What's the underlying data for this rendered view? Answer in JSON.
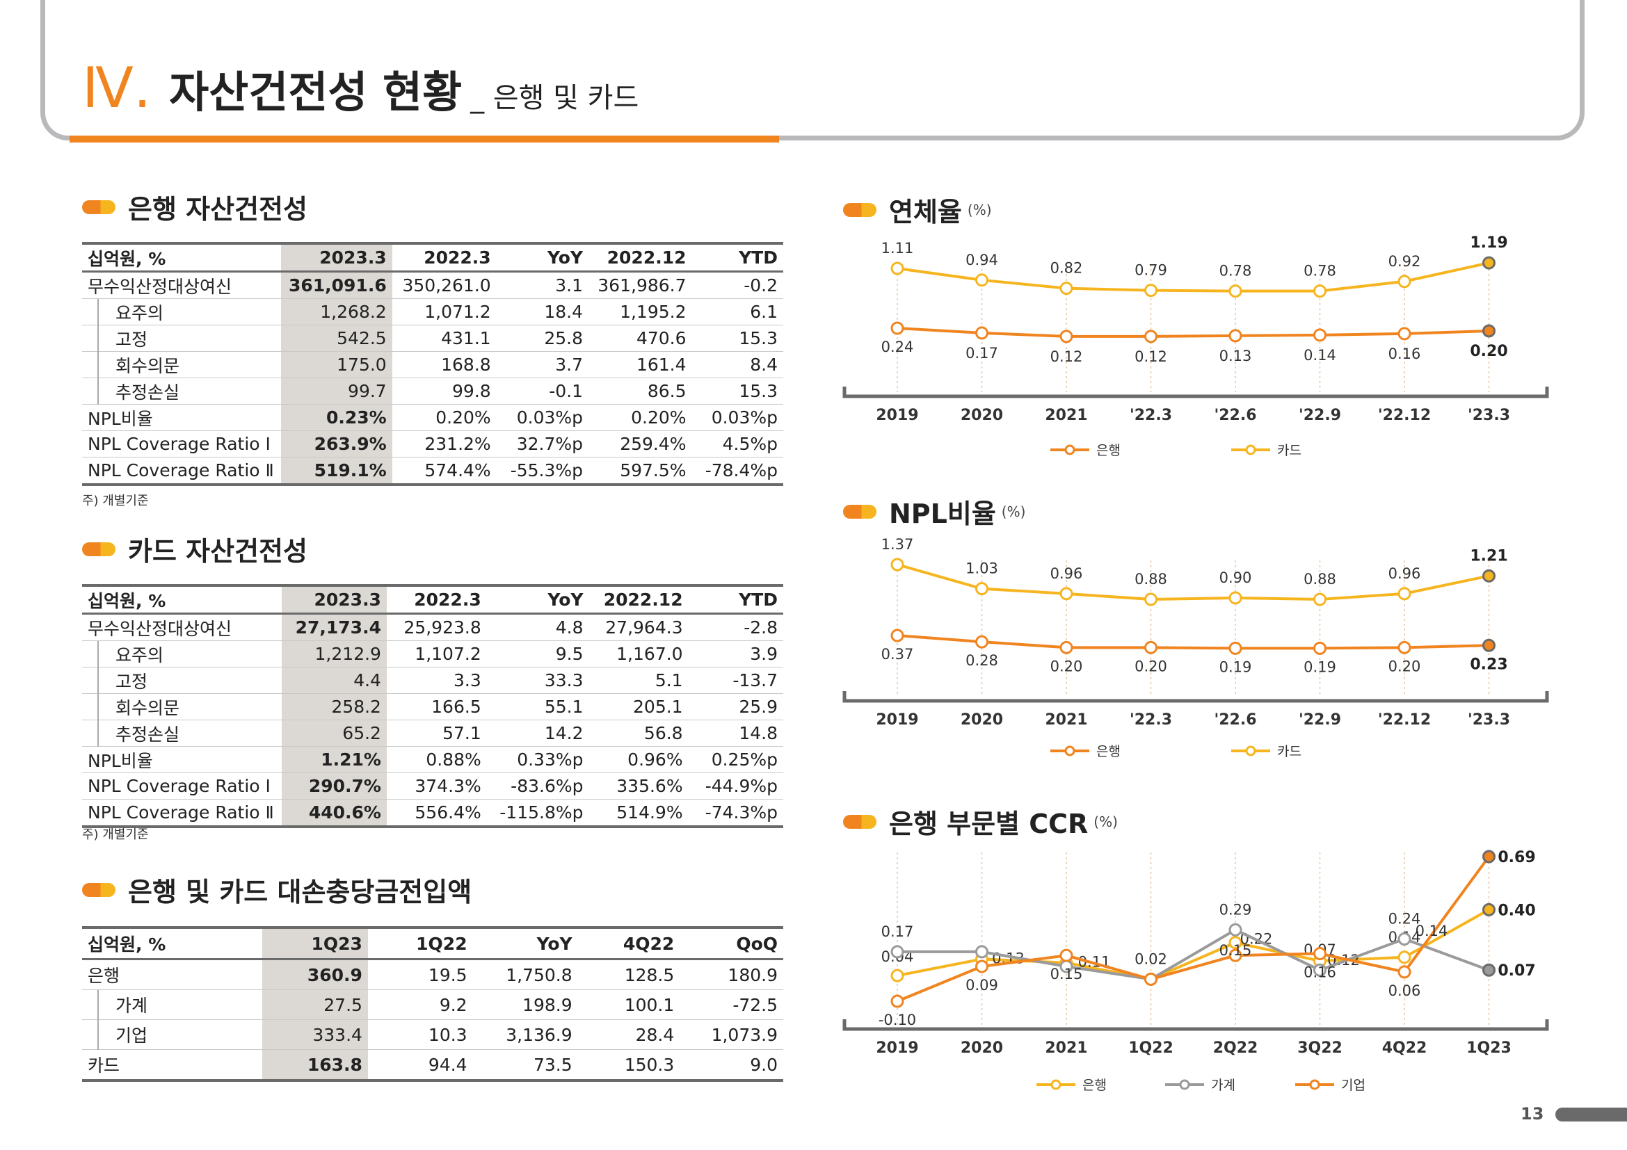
{
  "header": {
    "roman": "Ⅳ.",
    "title": "자산건전성 현황",
    "subtitle": "_ 은행 및 카드"
  },
  "page_number": "13",
  "bank_table": {
    "title": "은행 자산건전성",
    "columns": [
      "십억원, %",
      "2023.3",
      "2022.3",
      "YoY",
      "2022.12",
      "YTD"
    ],
    "rows": [
      {
        "label": "무수익산정대상여신",
        "values": [
          "361,091.6",
          "350,261.0",
          "3.1",
          "361,986.7",
          "-0.2"
        ]
      },
      {
        "label": "요주의",
        "values": [
          "1,268.2",
          "1,071.2",
          "18.4",
          "1,195.2",
          "6.1"
        ]
      },
      {
        "label": "고정",
        "values": [
          "542.5",
          "431.1",
          "25.8",
          "470.6",
          "15.3"
        ]
      },
      {
        "label": "회수의문",
        "values": [
          "175.0",
          "168.8",
          "3.7",
          "161.4",
          "8.4"
        ]
      },
      {
        "label": "추정손실",
        "values": [
          "99.7",
          "99.8",
          "-0.1",
          "86.5",
          "15.3"
        ]
      },
      {
        "label": "NPL비율",
        "values": [
          "0.23%",
          "0.20%",
          "0.03%p",
          "0.20%",
          "0.03%p"
        ]
      },
      {
        "label": "NPL Coverage Ratio Ⅰ",
        "values": [
          "263.9%",
          "231.2%",
          "32.7%p",
          "259.4%",
          "4.5%p"
        ]
      },
      {
        "label": "NPL Coverage Ratio Ⅱ",
        "values": [
          "519.1%",
          "574.4%",
          "-55.3%p",
          "597.5%",
          "-78.4%p"
        ]
      }
    ],
    "note": "주) 개별기준"
  },
  "card_table": {
    "title": "카드 자산건전성",
    "columns": [
      "십억원, %",
      "2023.3",
      "2022.3",
      "YoY",
      "2022.12",
      "YTD"
    ],
    "rows": [
      {
        "label": "무수익산정대상여신",
        "values": [
          "27,173.4",
          "25,923.8",
          "4.8",
          "27,964.3",
          "-2.8"
        ]
      },
      {
        "label": "요주의",
        "values": [
          "1,212.9",
          "1,107.2",
          "9.5",
          "1,167.0",
          "3.9"
        ]
      },
      {
        "label": "고정",
        "values": [
          "4.4",
          "3.3",
          "33.3",
          "5.1",
          "-13.7"
        ]
      },
      {
        "label": "회수의문",
        "values": [
          "258.2",
          "166.5",
          "55.1",
          "205.1",
          "25.9"
        ]
      },
      {
        "label": "추정손실",
        "values": [
          "65.2",
          "57.1",
          "14.2",
          "56.8",
          "14.8"
        ]
      },
      {
        "label": "NPL비율",
        "values": [
          "1.21%",
          "0.88%",
          "0.33%p",
          "0.96%",
          "0.25%p"
        ]
      },
      {
        "label": "NPL Coverage Ratio Ⅰ",
        "values": [
          "290.7%",
          "374.3%",
          "-83.6%p",
          "335.6%",
          "-44.9%p"
        ]
      },
      {
        "label": "NPL Coverage Ratio Ⅱ",
        "values": [
          "440.6%",
          "556.4%",
          "-115.8%p",
          "514.9%",
          "-74.3%p"
        ]
      }
    ],
    "note": "주) 개별기준"
  },
  "provision_table": {
    "title": "은행 및 카드 대손충당금전입액",
    "columns": [
      "십억원, %",
      "1Q23",
      "1Q22",
      "YoY",
      "4Q22",
      "QoQ"
    ],
    "rows": [
      {
        "label": "은행",
        "values": [
          "360.9",
          "19.5",
          "1,750.8",
          "128.5",
          "180.9"
        ]
      },
      {
        "label": "가계",
        "values": [
          "27.5",
          "9.2",
          "198.9",
          "100.1",
          "-72.5"
        ]
      },
      {
        "label": "기업",
        "values": [
          "333.4",
          "10.3",
          "3,136.9",
          "28.4",
          "1,073.9"
        ]
      },
      {
        "label": "카드",
        "values": [
          "163.8",
          "94.4",
          "73.5",
          "150.3",
          "9.0"
        ]
      }
    ]
  },
  "colors": {
    "orange": "#f0841f",
    "yellow": "#f6b51f",
    "gray": "#9a9a9a",
    "dark": "#6a6a6a",
    "highlight": "#dcd9d4"
  },
  "chart_data": [
    {
      "type": "line",
      "title": "연체율",
      "unit": "(%)",
      "categories": [
        "2019",
        "2020",
        "2021",
        "'22.3",
        "'22.6",
        "'22.9",
        "'22.12",
        "'23.3"
      ],
      "series": [
        {
          "name": "은행",
          "values": [
            0.24,
            0.17,
            0.12,
            0.12,
            0.13,
            0.14,
            0.16,
            0.2
          ],
          "labels": [
            "0.24",
            "0.17",
            "0.12",
            "0.12",
            "0.13",
            "0.14",
            "0.16",
            "0.20"
          ],
          "color": "#f0841f"
        },
        {
          "name": "카드",
          "values": [
            1.11,
            0.94,
            0.82,
            0.79,
            0.78,
            0.78,
            0.92,
            1.19
          ],
          "labels": [
            "1.11",
            "0.94",
            "0.82",
            "0.79",
            "0.78",
            "0.78",
            "0.92",
            "1.19"
          ],
          "color": "#f6b51f"
        }
      ],
      "legend": "bottom"
    },
    {
      "type": "line",
      "title": "NPL비율",
      "unit": "(%)",
      "categories": [
        "2019",
        "2020",
        "2021",
        "'22.3",
        "'22.6",
        "'22.9",
        "'22.12",
        "'23.3"
      ],
      "series": [
        {
          "name": "은행",
          "values": [
            0.37,
            0.28,
            0.2,
            0.2,
            0.19,
            0.19,
            0.2,
            0.23
          ],
          "labels": [
            "0.37",
            "0.28",
            "0.20",
            "0.20",
            "0.19",
            "0.19",
            "0.20",
            "0.23"
          ],
          "color": "#f0841f"
        },
        {
          "name": "카드",
          "values": [
            1.37,
            1.03,
            0.96,
            0.88,
            0.9,
            0.88,
            0.96,
            1.21
          ],
          "labels": [
            "1.37",
            "1.03",
            "0.96",
            "0.88",
            "0.90",
            "0.88",
            "0.96",
            "1.21"
          ],
          "color": "#f6b51f"
        }
      ],
      "legend": "bottom"
    },
    {
      "type": "line",
      "title": "은행 부문별 CCR",
      "unit": "(%)",
      "categories": [
        "2019",
        "2020",
        "2021",
        "1Q22",
        "2Q22",
        "3Q22",
        "4Q22",
        "1Q23"
      ],
      "series": [
        {
          "name": "은행",
          "values": [
            0.04,
            0.13,
            0.11,
            0.02,
            0.22,
            0.12,
            0.14,
            0.4
          ],
          "labels": [
            "0.04",
            "0.13",
            "0.11",
            "0.02",
            "0.22",
            "0.12",
            "0.14",
            "0.40"
          ],
          "color": "#f6b51f"
        },
        {
          "name": "가계",
          "values": [
            0.17,
            0.17,
            0.09,
            0.02,
            0.29,
            0.07,
            0.24,
            0.07
          ],
          "labels": [
            "0.17",
            "",
            "",
            "",
            "0.29",
            "0.07",
            "0.24",
            "0.07"
          ],
          "color": "#9a9a9a"
        },
        {
          "name": "기업",
          "values": [
            -0.1,
            0.09,
            0.15,
            0.02,
            0.15,
            0.16,
            0.06,
            0.69
          ],
          "labels": [
            "-0.10",
            "0.09",
            "0.15",
            "",
            "0.15",
            "0.16",
            "0.06",
            "0.69"
          ],
          "color": "#f0841f"
        }
      ],
      "extra_labels": [
        "0.14",
        "0.07"
      ],
      "legend": "bottom"
    }
  ]
}
